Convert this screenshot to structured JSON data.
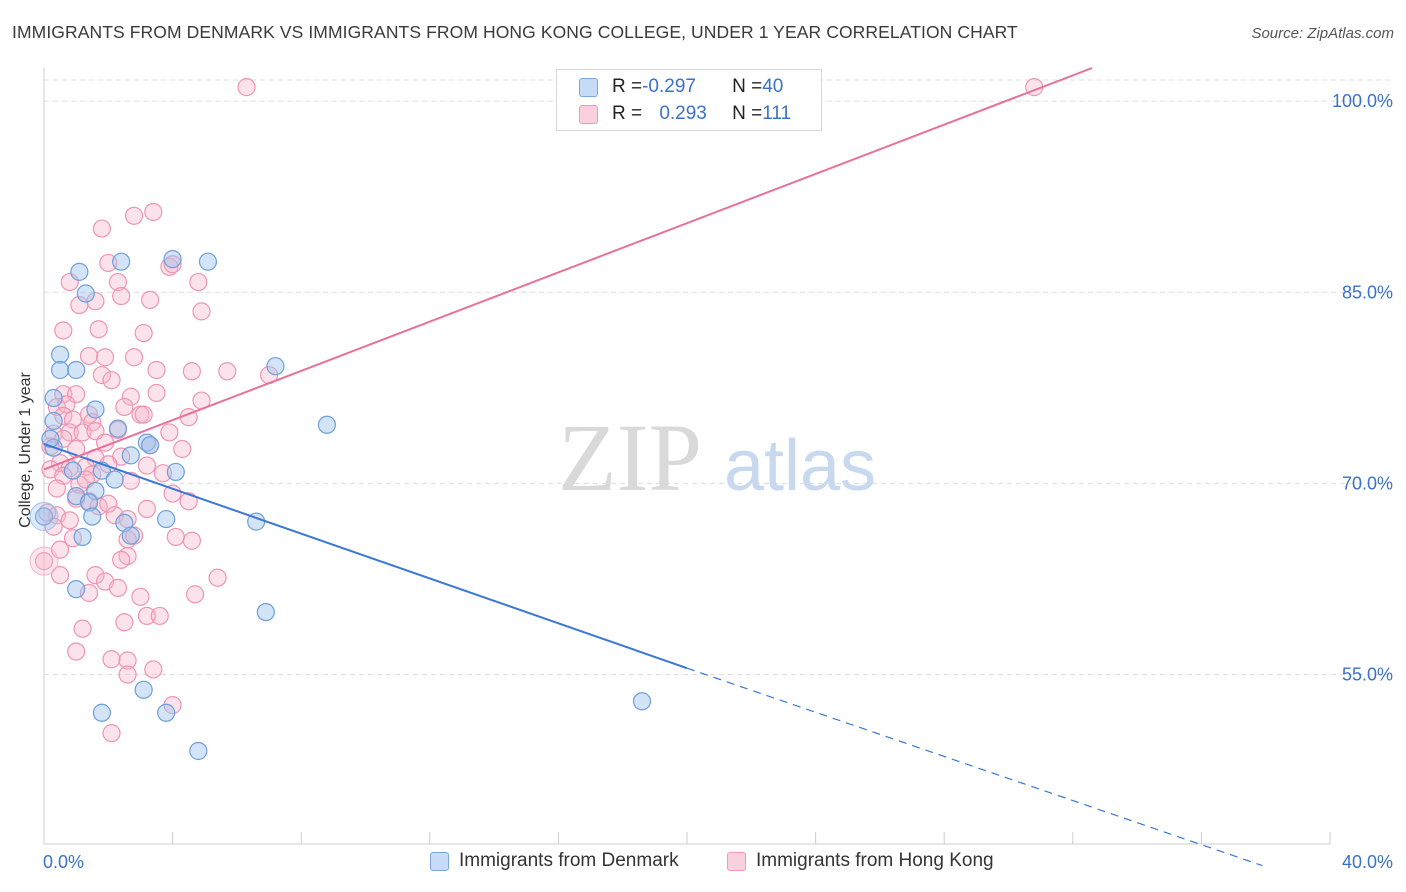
{
  "title": "IMMIGRANTS FROM DENMARK VS IMMIGRANTS FROM HONG KONG COLLEGE, UNDER 1 YEAR CORRELATION CHART",
  "source": "Source: ZipAtlas.com",
  "watermark": {
    "zip": "ZIP",
    "atlas": "atlas"
  },
  "legend_top": [
    {
      "r_label": "R = ",
      "r_value": "-0.297",
      "n_label": "N = ",
      "n_value": "40",
      "color": "#9ec3ee"
    },
    {
      "r_label": "R = ",
      "r_value": "0.293",
      "n_label": "N = ",
      "n_value": "111",
      "color": "#f6b3c8"
    }
  ],
  "legend_bottom": [
    {
      "label": "Immigrants from Denmark",
      "color": "#9ec3ee"
    },
    {
      "label": "Immigrants from Hong Kong",
      "color": "#f6b3c8"
    }
  ],
  "colors": {
    "blue": "#3a78d4",
    "pink": "#e8709a",
    "grid": "#dddddd",
    "axis_text": "#3b72c9"
  },
  "chart_data": {
    "type": "scatter",
    "title": "IMMIGRANTS FROM DENMARK VS IMMIGRANTS FROM HONG KONG COLLEGE, UNDER 1 YEAR CORRELATION CHART",
    "xlabel": "",
    "ylabel": "College, Under 1 year",
    "x_tick_labels": [
      "0.0%",
      "40.0%"
    ],
    "y_tick_labels": [
      "100.0%",
      "85.0%",
      "70.0%",
      "55.0%"
    ],
    "y_ticks": [
      100,
      85,
      70,
      55
    ],
    "xlim": [
      0,
      40
    ],
    "ylim": [
      41.7,
      102.6
    ],
    "grid": true,
    "series": [
      {
        "name": "Immigrants from Denmark",
        "r": -0.297,
        "n": 40,
        "trend": {
          "x0": 0,
          "y0": 73.1,
          "x1": 20.0,
          "y1": 55.5,
          "dash_x1": 37.9,
          "dash_y1": 40.0
        },
        "points": [
          [
            1.1,
            86.6
          ],
          [
            2.4,
            87.4
          ],
          [
            4.0,
            87.6
          ],
          [
            5.1,
            87.4
          ],
          [
            1.3,
            84.9
          ],
          [
            0.5,
            80.1
          ],
          [
            0.5,
            78.9
          ],
          [
            1.0,
            78.9
          ],
          [
            7.2,
            79.2
          ],
          [
            0.3,
            76.7
          ],
          [
            1.6,
            75.8
          ],
          [
            2.3,
            74.3
          ],
          [
            8.8,
            74.6
          ],
          [
            0.3,
            74.9
          ],
          [
            3.2,
            73.2
          ],
          [
            0.3,
            72.8
          ],
          [
            2.7,
            72.2
          ],
          [
            0.9,
            71.0
          ],
          [
            1.8,
            71.0
          ],
          [
            2.2,
            70.3
          ],
          [
            4.1,
            70.9
          ],
          [
            1.0,
            69.0
          ],
          [
            1.6,
            69.4
          ],
          [
            1.4,
            68.5
          ],
          [
            0.0,
            67.4
          ],
          [
            1.5,
            67.4
          ],
          [
            2.5,
            66.9
          ],
          [
            3.8,
            67.2
          ],
          [
            6.6,
            67.0
          ],
          [
            1.2,
            65.8
          ],
          [
            2.7,
            65.9
          ],
          [
            1.0,
            61.7
          ],
          [
            6.9,
            59.9
          ],
          [
            3.1,
            53.8
          ],
          [
            1.8,
            52.0
          ],
          [
            3.8,
            52.0
          ],
          [
            4.8,
            49.0
          ],
          [
            18.6,
            52.9
          ],
          [
            3.3,
            73.0
          ],
          [
            0.2,
            73.5
          ]
        ]
      },
      {
        "name": "Immigrants from Hong Kong",
        "r": 0.293,
        "n": 111,
        "trend": {
          "x0": 0,
          "y0": 71.1,
          "x1": 32.6,
          "y1": 102.6
        },
        "points": [
          [
            6.3,
            101.1
          ],
          [
            30.8,
            101.1
          ],
          [
            3.4,
            91.3
          ],
          [
            2.8,
            91.0
          ],
          [
            1.8,
            90.0
          ],
          [
            3.9,
            87.0
          ],
          [
            4.0,
            87.2
          ],
          [
            2.0,
            87.3
          ],
          [
            0.8,
            85.8
          ],
          [
            2.3,
            85.8
          ],
          [
            4.8,
            85.8
          ],
          [
            1.1,
            84.0
          ],
          [
            2.4,
            84.7
          ],
          [
            3.3,
            84.4
          ],
          [
            1.6,
            84.3
          ],
          [
            4.9,
            83.5
          ],
          [
            0.6,
            82.0
          ],
          [
            1.7,
            82.1
          ],
          [
            3.1,
            81.8
          ],
          [
            1.4,
            80.0
          ],
          [
            1.9,
            79.9
          ],
          [
            2.8,
            79.9
          ],
          [
            3.5,
            78.9
          ],
          [
            4.6,
            78.8
          ],
          [
            5.7,
            78.8
          ],
          [
            1.8,
            78.5
          ],
          [
            2.1,
            78.1
          ],
          [
            7.0,
            78.5
          ],
          [
            0.6,
            77.0
          ],
          [
            1.0,
            77.0
          ],
          [
            2.7,
            76.8
          ],
          [
            3.5,
            77.1
          ],
          [
            4.9,
            76.5
          ],
          [
            0.4,
            76.0
          ],
          [
            0.7,
            76.2
          ],
          [
            1.4,
            75.4
          ],
          [
            2.5,
            76.0
          ],
          [
            3.0,
            75.4
          ],
          [
            3.1,
            75.4
          ],
          [
            4.5,
            75.2
          ],
          [
            0.6,
            75.3
          ],
          [
            0.9,
            75.0
          ],
          [
            1.5,
            74.8
          ],
          [
            0.3,
            73.9
          ],
          [
            0.8,
            74.0
          ],
          [
            1.2,
            74.0
          ],
          [
            1.6,
            74.1
          ],
          [
            2.3,
            74.2
          ],
          [
            3.9,
            74.0
          ],
          [
            0.6,
            73.5
          ],
          [
            1.9,
            73.2
          ],
          [
            3.3,
            73.0
          ],
          [
            4.3,
            72.7
          ],
          [
            0.2,
            72.9
          ],
          [
            1.0,
            72.7
          ],
          [
            1.6,
            72.0
          ],
          [
            2.4,
            72.1
          ],
          [
            0.5,
            71.6
          ],
          [
            1.3,
            71.3
          ],
          [
            2.0,
            71.5
          ],
          [
            3.2,
            71.4
          ],
          [
            0.2,
            71.1
          ],
          [
            0.8,
            71.2
          ],
          [
            1.5,
            70.7
          ],
          [
            2.7,
            70.2
          ],
          [
            0.6,
            70.6
          ],
          [
            1.1,
            69.9
          ],
          [
            4.0,
            69.2
          ],
          [
            1.0,
            68.8
          ],
          [
            1.4,
            68.6
          ],
          [
            1.7,
            68.2
          ],
          [
            2.0,
            68.4
          ],
          [
            3.2,
            68.0
          ],
          [
            4.5,
            68.6
          ],
          [
            0.4,
            67.5
          ],
          [
            0.8,
            67.1
          ],
          [
            2.2,
            67.5
          ],
          [
            2.6,
            67.2
          ],
          [
            0.3,
            66.6
          ],
          [
            0.9,
            65.7
          ],
          [
            2.6,
            65.6
          ],
          [
            2.8,
            65.9
          ],
          [
            4.1,
            65.8
          ],
          [
            0.5,
            64.8
          ],
          [
            2.6,
            64.3
          ],
          [
            0.0,
            63.9
          ],
          [
            0.5,
            62.8
          ],
          [
            1.6,
            62.8
          ],
          [
            1.9,
            62.3
          ],
          [
            5.4,
            62.6
          ],
          [
            1.4,
            61.4
          ],
          [
            2.3,
            61.8
          ],
          [
            3.0,
            61.1
          ],
          [
            4.7,
            61.3
          ],
          [
            3.2,
            59.6
          ],
          [
            3.6,
            59.6
          ],
          [
            2.5,
            59.1
          ],
          [
            1.0,
            56.8
          ],
          [
            2.1,
            56.2
          ],
          [
            2.6,
            56.1
          ],
          [
            3.4,
            55.4
          ],
          [
            2.6,
            55.0
          ],
          [
            4.0,
            52.6
          ],
          [
            2.1,
            50.4
          ],
          [
            1.2,
            58.6
          ],
          [
            4.6,
            65.5
          ],
          [
            2.4,
            64.0
          ],
          [
            0.1,
            67.7
          ],
          [
            1.3,
            70.3
          ],
          [
            3.7,
            70.8
          ],
          [
            0.4,
            69.6
          ]
        ]
      }
    ]
  }
}
